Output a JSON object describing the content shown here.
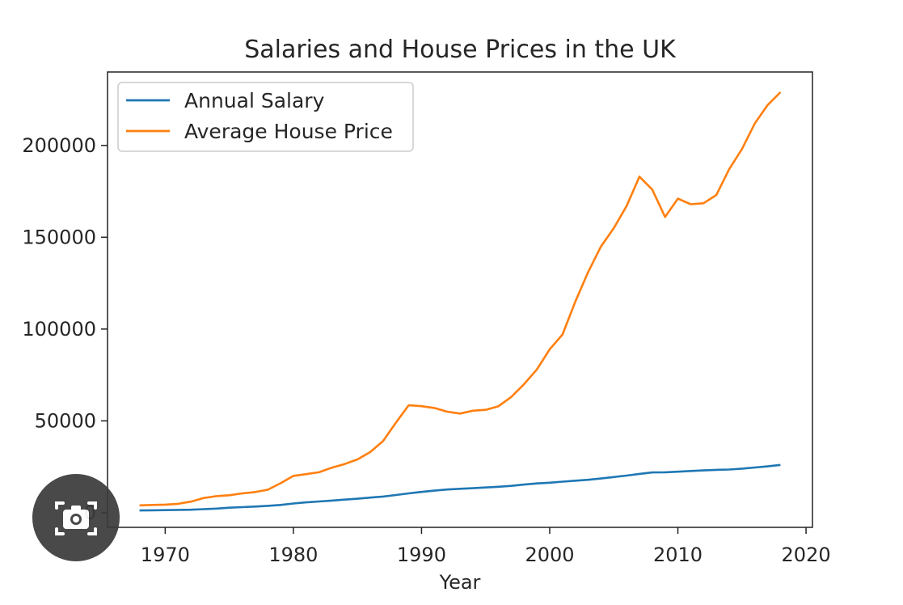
{
  "chart_data": {
    "type": "line",
    "title": "Salaries and House Prices in the UK",
    "xlabel": "Year",
    "ylabel": "",
    "xlim": [
      1965.5,
      2020.5
    ],
    "ylim": [
      -8000,
      240000
    ],
    "xticks": [
      1970,
      1980,
      1990,
      2000,
      2010,
      2020
    ],
    "yticks": [
      0,
      50000,
      100000,
      150000,
      200000
    ],
    "legend": "top-left",
    "grid": false,
    "x": [
      1968,
      1969,
      1970,
      1971,
      1972,
      1973,
      1974,
      1975,
      1976,
      1977,
      1978,
      1979,
      1980,
      1981,
      1982,
      1983,
      1984,
      1985,
      1986,
      1987,
      1988,
      1989,
      1990,
      1991,
      1992,
      1993,
      1994,
      1995,
      1996,
      1997,
      1998,
      1999,
      2000,
      2001,
      2002,
      2003,
      2004,
      2005,
      2006,
      2007,
      2008,
      2009,
      2010,
      2011,
      2012,
      2013,
      2014,
      2015,
      2016,
      2017,
      2018
    ],
    "series": [
      {
        "name": "Annual Salary",
        "color": "#1f77b4",
        "values": [
          1200,
          1300,
          1400,
          1500,
          1600,
          1900,
          2200,
          2700,
          3000,
          3300,
          3700,
          4200,
          5000,
          5600,
          6100,
          6600,
          7100,
          7600,
          8200,
          8800,
          9600,
          10500,
          11300,
          12000,
          12600,
          13000,
          13300,
          13700,
          14100,
          14600,
          15300,
          15900,
          16300,
          16900,
          17400,
          17900,
          18600,
          19400,
          20200,
          21100,
          21900,
          22000,
          22300,
          22700,
          23000,
          23300,
          23500,
          24000,
          24600,
          25200,
          26000
        ]
      },
      {
        "name": "Average House Price",
        "color": "#ff7f0e",
        "values": [
          4000,
          4200,
          4400,
          4800,
          6000,
          8000,
          9000,
          9500,
          10500,
          11200,
          12500,
          16000,
          20000,
          21000,
          22000,
          24500,
          26500,
          29000,
          33000,
          39000,
          49000,
          58500,
          58000,
          57000,
          55000,
          54000,
          55500,
          56000,
          58000,
          63000,
          70000,
          78000,
          89000,
          97000,
          115000,
          131000,
          145000,
          155000,
          167000,
          183000,
          176000,
          161000,
          171000,
          168000,
          168500,
          173000,
          187000,
          198000,
          212000,
          222000,
          229000
        ]
      }
    ]
  },
  "overlay": {
    "lens_icon": "camera-search-icon"
  }
}
